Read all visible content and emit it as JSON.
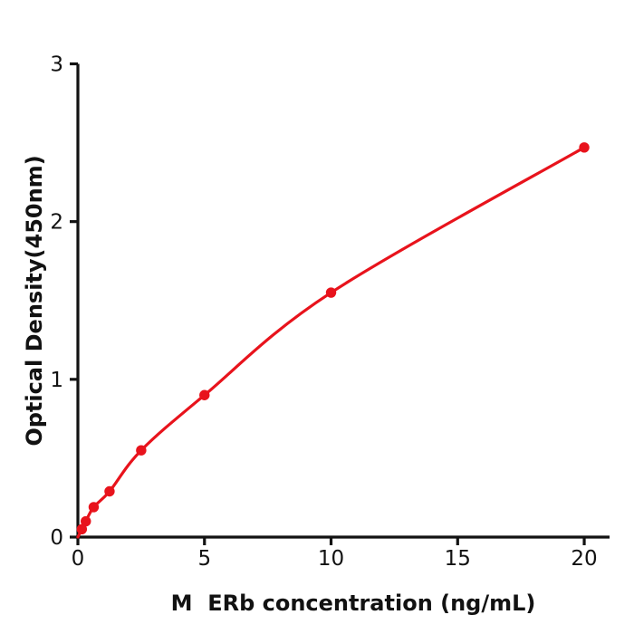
{
  "chart_data": {
    "type": "line",
    "xlabel": "M  ERb concentration (ng/mL)",
    "ylabel": "Optical Density(450nm)",
    "x": [
      0.156,
      0.3125,
      0.625,
      1.25,
      2.5,
      5,
      10,
      20
    ],
    "y": [
      0.05,
      0.1,
      0.19,
      0.29,
      0.55,
      0.9,
      1.55,
      2.47
    ],
    "xlim": [
      0,
      21
    ],
    "ylim": [
      0,
      3
    ],
    "xticks": [
      0,
      5,
      10,
      15,
      20
    ],
    "yticks": [
      0,
      1,
      2,
      3
    ],
    "grid": false,
    "legend": "none",
    "marker": "circle",
    "curve_starts_at_origin": true,
    "colors": {
      "line": "#e8131c",
      "marker": "#e8131c",
      "axis": "#121212",
      "text": "#121212",
      "background": "#ffffff"
    }
  }
}
